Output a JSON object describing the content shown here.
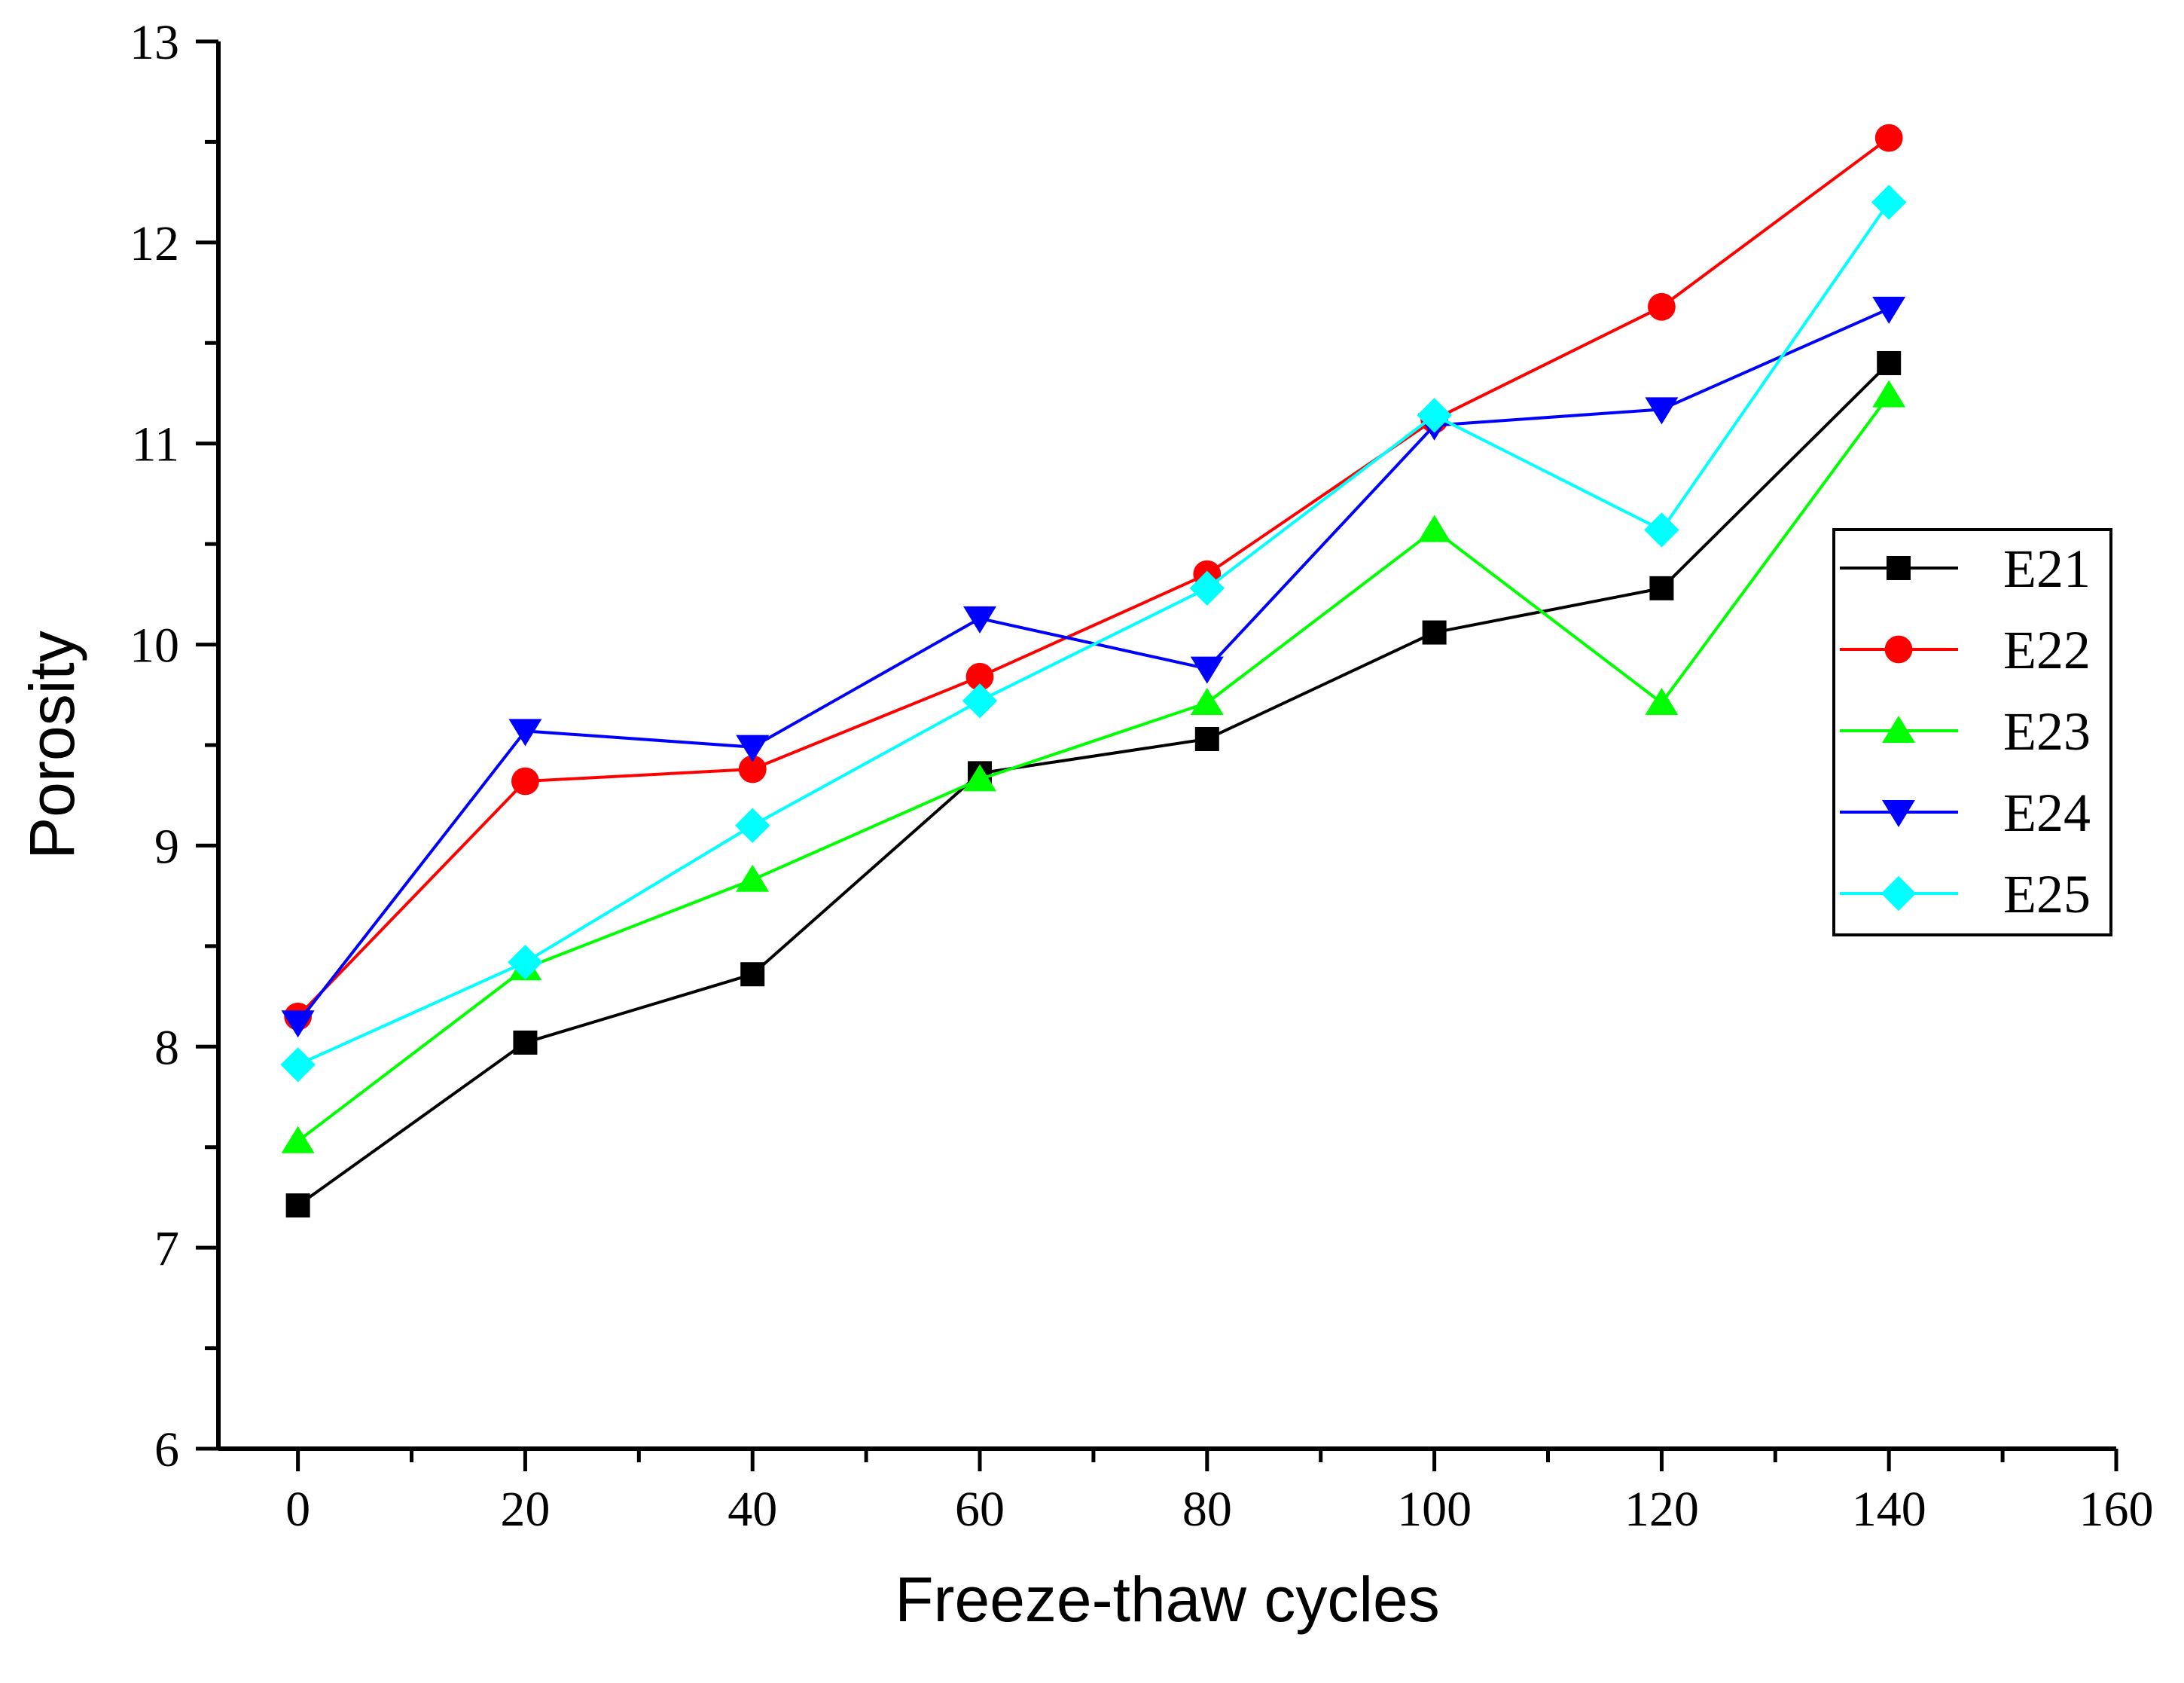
{
  "chart_data": {
    "type": "line",
    "title": "",
    "xlabel": "Freeze-thaw cycles",
    "ylabel": "Porosity",
    "xlim": [
      -7,
      160
    ],
    "ylim": [
      6,
      13
    ],
    "x_ticks": [
      0,
      20,
      40,
      60,
      80,
      100,
      120,
      140,
      160
    ],
    "y_ticks": [
      6,
      7,
      8,
      9,
      10,
      11,
      12,
      13
    ],
    "x_tick_labels": [
      "0",
      "20",
      "40",
      "60",
      "80",
      "100",
      "120",
      "140",
      "160"
    ],
    "y_tick_labels": [
      "6",
      "7",
      "8",
      "9",
      "10",
      "11",
      "12",
      "13"
    ],
    "grid": false,
    "legend_position": "right",
    "x": [
      0,
      20,
      40,
      60,
      80,
      100,
      120,
      140
    ],
    "series": [
      {
        "name": "E21",
        "color": "#000000",
        "marker": "square",
        "values": [
          7.21,
          8.02,
          8.36,
          9.36,
          9.53,
          10.06,
          10.28,
          11.4
        ]
      },
      {
        "name": "E22",
        "color": "#ff0000",
        "marker": "circle",
        "values": [
          8.15,
          9.32,
          9.38,
          9.84,
          10.35,
          11.12,
          11.68,
          12.52
        ]
      },
      {
        "name": "E23",
        "color": "#00ff00",
        "marker": "triangle-up",
        "values": [
          7.53,
          8.39,
          8.83,
          9.33,
          9.71,
          10.57,
          9.71,
          11.24
        ]
      },
      {
        "name": "E24",
        "color": "#0000ff",
        "marker": "triangle-down",
        "values": [
          8.12,
          9.57,
          9.49,
          10.13,
          9.88,
          11.09,
          11.17,
          11.67
        ]
      },
      {
        "name": "E25",
        "color": "#00ffff",
        "marker": "diamond",
        "values": [
          7.91,
          8.42,
          9.1,
          9.72,
          10.28,
          11.14,
          10.57,
          12.2
        ]
      }
    ]
  }
}
